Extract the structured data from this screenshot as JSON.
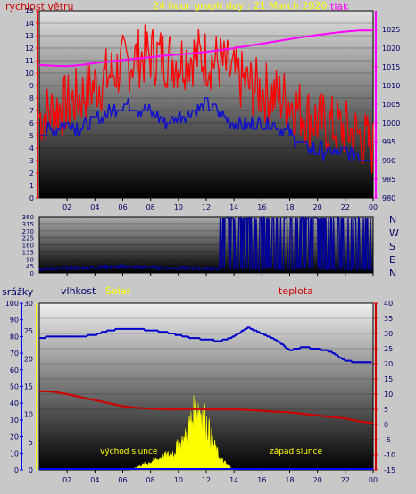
{
  "colors": {
    "wind": "#ff0000",
    "pressure": "#ff00ff",
    "direction": "#000099",
    "humidity": "#0000cc",
    "rain": "#0000ff",
    "temperature": "#cc0000",
    "solar": "#ffff00",
    "frame": "#000000",
    "title": "#ffff00",
    "axis_text": "#000066"
  },
  "chart_data": [
    {
      "type": "line",
      "title": "24 hour graph day : 21 March 2020",
      "x_ticks": [
        "02",
        "04",
        "06",
        "08",
        "10",
        "12",
        "14",
        "16",
        "18",
        "20",
        "22",
        "00"
      ],
      "grid": true,
      "left_axis": {
        "label": "rychlost větru",
        "ylim": [
          0,
          15
        ],
        "ticks": [
          "0",
          "1",
          "2",
          "3",
          "4",
          "5",
          "6",
          "7",
          "8",
          "9",
          "10",
          "11",
          "12",
          "13",
          "14",
          "15"
        ]
      },
      "right_axis": {
        "label": "tlak",
        "ylim": [
          980,
          1030
        ],
        "ticks": [
          "980",
          "985",
          "990",
          "995",
          "1000",
          "1005",
          "1010",
          "1015",
          "1020",
          "1025"
        ]
      },
      "series": [
        {
          "key": "gust",
          "x": [
            0,
            1,
            2,
            3,
            4,
            5,
            6,
            7,
            8,
            9,
            10,
            11,
            12,
            13,
            14,
            15,
            16,
            17,
            18,
            19,
            20,
            21,
            22,
            23,
            24
          ],
          "values": [
            6.5,
            7.0,
            7.5,
            8.2,
            9.0,
            9.8,
            10.6,
            11.2,
            11.5,
            11.3,
            11.0,
            11.4,
            11.2,
            10.8,
            9.8,
            9.0,
            8.6,
            8.2,
            7.8,
            6.8,
            6.2,
            5.8,
            5.5,
            5.0,
            4.0
          ],
          "spread": 1.6
        },
        {
          "key": "average_wind",
          "x": [
            0,
            1,
            2,
            3,
            4,
            5,
            6,
            7,
            8,
            9,
            10,
            11,
            12,
            13,
            14,
            15,
            16,
            17,
            18,
            19,
            20,
            21,
            22,
            23,
            24
          ],
          "values": [
            5.2,
            5.5,
            6.0,
            5.5,
            6.2,
            6.8,
            7.4,
            7.2,
            7.0,
            6.2,
            6.4,
            7.0,
            7.4,
            6.8,
            6.0,
            5.8,
            6.0,
            5.8,
            5.2,
            4.2,
            3.8,
            3.6,
            3.6,
            3.4,
            3.0
          ]
        },
        {
          "key": "pressure",
          "axis": "right",
          "x": [
            0,
            1,
            2,
            3,
            4,
            5,
            6,
            7,
            8,
            9,
            10,
            11,
            12,
            13,
            14,
            15,
            16,
            17,
            18,
            19,
            20,
            21,
            22,
            23,
            24
          ],
          "values": [
            1015.5,
            1015.3,
            1015.2,
            1015.5,
            1016.0,
            1016.4,
            1016.8,
            1017.2,
            1017.6,
            1018.0,
            1018.3,
            1018.6,
            1019.0,
            1019.5,
            1020.0,
            1020.6,
            1021.2,
            1021.8,
            1022.4,
            1023.0,
            1023.5,
            1024.0,
            1024.4,
            1024.7,
            1024.7
          ]
        }
      ]
    },
    {
      "type": "line",
      "x_ticks": [
        "02",
        "04",
        "06",
        "08",
        "10",
        "12",
        "14",
        "16",
        "18",
        "20",
        "22",
        "00"
      ],
      "left_axis": {
        "ylim": [
          0,
          360
        ],
        "ticks": [
          "0",
          "45",
          "90",
          "135",
          "180",
          "225",
          "270",
          "315",
          "360"
        ]
      },
      "right_labels": [
        "N",
        "W",
        "S",
        "E",
        "N"
      ],
      "series": [
        {
          "key": "wind_direction",
          "description_values_deg": "mostly 20-40 until 13h, then alternating between about 20 and 350",
          "x": [
            0,
            2,
            4,
            6,
            8,
            10,
            12,
            13,
            14,
            16,
            18,
            20,
            22,
            24
          ],
          "values": [
            25,
            30,
            35,
            40,
            35,
            30,
            30,
            25,
            30,
            350,
            20,
            350,
            20,
            350
          ]
        }
      ]
    },
    {
      "type": "line",
      "x_ticks": [
        "02",
        "04",
        "06",
        "08",
        "10",
        "12",
        "14",
        "16",
        "18",
        "20",
        "22",
        "00"
      ],
      "labels": {
        "rain": "srážky",
        "humidity": "vlhkost",
        "solar": "Solar",
        "temperature": "teplota"
      },
      "annotations": {
        "sunrise": "východ slunce",
        "sunset": "západ slunce"
      },
      "rain_axis": {
        "ylim": [
          0,
          100
        ],
        "ticks": [
          "0",
          "10",
          "20",
          "30",
          "40",
          "50",
          "60",
          "70",
          "80",
          "90",
          "100"
        ]
      },
      "solar_axis": {
        "ylim": [
          0,
          30
        ],
        "ticks": [
          "0",
          "5",
          "10",
          "15",
          "20",
          "25",
          "30"
        ]
      },
      "temp_axis": {
        "ylim": [
          -15,
          40
        ],
        "ticks": [
          "-15",
          "-10",
          "-5",
          "0",
          "5",
          "10",
          "15",
          "20",
          "25",
          "30",
          "35",
          "40"
        ]
      },
      "series": [
        {
          "key": "humidity",
          "x": [
            0,
            1,
            2,
            3,
            4,
            5,
            6,
            7,
            8,
            9,
            10,
            11,
            12,
            13,
            14,
            15,
            16,
            17,
            18,
            19,
            20,
            21,
            22,
            23,
            24
          ],
          "values": [
            28.5,
            29.0,
            29.0,
            29.0,
            29.5,
            31.0,
            31.5,
            31.5,
            31.0,
            30.5,
            29.5,
            28.5,
            28.0,
            27.5,
            29.0,
            32.0,
            30.0,
            28.0,
            24.5,
            25.5,
            25.0,
            24.0,
            21.0,
            20.5,
            20.5
          ],
          "axis": "temp"
        },
        {
          "key": "temperature",
          "x": [
            0,
            1,
            2,
            3,
            4,
            5,
            6,
            7,
            8,
            9,
            10,
            11,
            12,
            13,
            14,
            15,
            16,
            17,
            18,
            19,
            20,
            21,
            22,
            23,
            24
          ],
          "values": [
            11.0,
            10.8,
            10.0,
            9.0,
            8.0,
            7.0,
            6.0,
            5.5,
            5.2,
            5.0,
            5.0,
            5.1,
            5.0,
            5.0,
            5.0,
            4.8,
            4.5,
            4.2,
            4.0,
            3.5,
            3.0,
            2.5,
            2.0,
            1.0,
            0.5
          ],
          "axis": "temp"
        },
        {
          "key": "solar",
          "x": [
            6.5,
            7.5,
            8.5,
            9.5,
            10.5,
            11.0,
            11.5,
            12.0,
            12.5,
            13.0,
            13.5,
            14.0
          ],
          "values": [
            0,
            1,
            2,
            3,
            6,
            10,
            12,
            9,
            5,
            2,
            1,
            0
          ],
          "axis": "solar"
        },
        {
          "key": "rain",
          "x": [
            0,
            24
          ],
          "values": [
            0,
            0
          ],
          "axis": "rain"
        }
      ]
    }
  ]
}
